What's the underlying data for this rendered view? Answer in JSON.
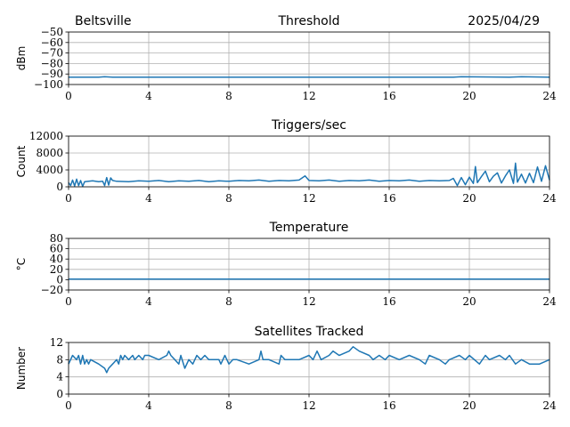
{
  "header": {
    "location": "Beltsville",
    "date": "2025/04/29"
  },
  "chart_data": [
    {
      "type": "line",
      "title": "Threshold",
      "ylabel": "dBm",
      "xlim": [
        0,
        24
      ],
      "ylim": [
        -100,
        -50
      ],
      "xticks": [
        0,
        4,
        8,
        12,
        16,
        20,
        24
      ],
      "yticks": [
        -100,
        -90,
        -80,
        -70,
        -60,
        -50
      ],
      "ytick_labels": [
        "−100",
        "−90",
        "−80",
        "−70",
        "−60",
        "−50"
      ],
      "grid": true,
      "series": [
        {
          "x": [
            0,
            1.5,
            1.8,
            2.2,
            2.6,
            5,
            10,
            15,
            19.2,
            19.6,
            22,
            22.6,
            24
          ],
          "values": [
            -93,
            -93,
            -92.5,
            -93,
            -93,
            -93,
            -93,
            -93,
            -93,
            -92.5,
            -93,
            -92.5,
            -93
          ]
        }
      ]
    },
    {
      "type": "line",
      "title": "Triggers/sec",
      "ylabel": "Count",
      "xlim": [
        0,
        24
      ],
      "ylim": [
        0,
        12000
      ],
      "xticks": [
        0,
        4,
        8,
        12,
        16,
        20,
        24
      ],
      "yticks": [
        0,
        4000,
        8000,
        12000
      ],
      "ytick_labels": [
        "0",
        "4000",
        "8000",
        "12000"
      ],
      "grid": true,
      "series": [
        {
          "x": [
            0,
            0.1,
            0.2,
            0.3,
            0.4,
            0.5,
            0.6,
            0.7,
            0.8,
            1.0,
            1.2,
            1.5,
            1.7,
            1.8,
            1.9,
            2.0,
            2.1,
            2.2,
            2.4,
            3.0,
            3.5,
            4.0,
            4.5,
            5.0,
            5.5,
            6.0,
            6.5,
            7.0,
            7.5,
            8.0,
            8.5,
            9.0,
            9.5,
            10.0,
            10.5,
            11.0,
            11.5,
            11.8,
            12.0,
            12.5,
            13.0,
            13.5,
            14.0,
            14.5,
            15.0,
            15.5,
            16.0,
            16.5,
            17.0,
            17.5,
            18.0,
            18.5,
            19.0,
            19.2,
            19.4,
            19.6,
            19.8,
            20.0,
            20.2,
            20.3,
            20.4,
            20.6,
            20.8,
            21.0,
            21.2,
            21.4,
            21.6,
            21.8,
            22.0,
            22.2,
            22.3,
            22.4,
            22.6,
            22.8,
            23.0,
            23.2,
            23.4,
            23.6,
            23.8,
            24.0
          ],
          "values": [
            1000,
            300,
            1600,
            200,
            1800,
            300,
            1500,
            100,
            1200,
            1300,
            1400,
            1200,
            1300,
            300,
            2200,
            400,
            2100,
            1500,
            1300,
            1200,
            1400,
            1300,
            1500,
            1200,
            1400,
            1300,
            1500,
            1200,
            1400,
            1300,
            1500,
            1400,
            1600,
            1300,
            1500,
            1400,
            1600,
            2600,
            1500,
            1400,
            1600,
            1300,
            1500,
            1400,
            1600,
            1300,
            1500,
            1400,
            1600,
            1300,
            1500,
            1400,
            1500,
            2000,
            300,
            2200,
            500,
            2300,
            800,
            4800,
            1000,
            2400,
            3700,
            1200,
            2500,
            3300,
            900,
            2600,
            4000,
            800,
            5600,
            1100,
            3000,
            900,
            3200,
            1000,
            4700,
            1300,
            5000,
            1600
          ]
        }
      ]
    },
    {
      "type": "line",
      "title": "Temperature",
      "ylabel": "°C",
      "xlim": [
        0,
        24
      ],
      "ylim": [
        -20,
        80
      ],
      "xticks": [
        0,
        4,
        8,
        12,
        16,
        20,
        24
      ],
      "yticks": [
        -20,
        0,
        20,
        40,
        60,
        80
      ],
      "ytick_labels": [
        "−20",
        "0",
        "20",
        "40",
        "60",
        "80"
      ],
      "grid": true,
      "series": [
        {
          "x": [
            0,
            24
          ],
          "values": [
            1,
            1
          ]
        }
      ]
    },
    {
      "type": "line",
      "title": "Satellites Tracked",
      "ylabel": "Number",
      "xlim": [
        0,
        24
      ],
      "ylim": [
        0,
        12
      ],
      "xticks": [
        0,
        4,
        8,
        12,
        16,
        20,
        24
      ],
      "yticks": [
        0,
        4,
        8,
        12
      ],
      "ytick_labels": [
        "0",
        "4",
        "8",
        "12"
      ],
      "grid": true,
      "series": [
        {
          "x": [
            0,
            0.2,
            0.4,
            0.5,
            0.6,
            0.7,
            0.8,
            0.9,
            1.0,
            1.1,
            1.5,
            1.8,
            1.9,
            2.0,
            2.2,
            2.4,
            2.5,
            2.6,
            2.7,
            2.8,
            3.0,
            3.2,
            3.3,
            3.5,
            3.7,
            3.8,
            4.0,
            4.5,
            4.9,
            5.0,
            5.1,
            5.3,
            5.5,
            5.6,
            5.8,
            6.0,
            6.2,
            6.4,
            6.6,
            6.8,
            7.0,
            7.5,
            7.6,
            7.8,
            8.0,
            8.2,
            8.4,
            9.0,
            9.5,
            9.6,
            9.7,
            10.0,
            10.5,
            10.6,
            10.8,
            11.0,
            11.5,
            12.0,
            12.2,
            12.4,
            12.5,
            12.6,
            13.0,
            13.2,
            13.5,
            14.0,
            14.2,
            14.5,
            15.0,
            15.2,
            15.5,
            15.8,
            16.0,
            16.5,
            17.0,
            17.5,
            17.8,
            18.0,
            18.5,
            18.8,
            19.0,
            19.5,
            19.8,
            20.0,
            20.5,
            20.8,
            21.0,
            21.5,
            21.8,
            22.0,
            22.3,
            22.6,
            23.0,
            23.5,
            24.0
          ],
          "values": [
            7,
            9,
            8,
            9,
            7,
            9,
            7,
            8,
            7,
            8,
            7,
            6,
            5,
            6,
            7,
            8,
            7,
            9,
            8,
            9,
            8,
            9,
            8,
            9,
            8,
            9,
            9,
            8,
            9,
            10,
            9,
            8,
            7,
            9,
            6,
            8,
            7,
            9,
            8,
            9,
            8,
            8,
            7,
            9,
            7,
            8,
            8,
            7,
            8,
            10,
            8,
            8,
            7,
            9,
            8,
            8,
            8,
            9,
            8,
            10,
            9,
            8,
            9,
            10,
            9,
            10,
            11,
            10,
            9,
            8,
            9,
            8,
            9,
            8,
            9,
            8,
            7,
            9,
            8,
            7,
            8,
            9,
            8,
            9,
            7,
            9,
            8,
            9,
            8,
            9,
            7,
            8,
            7,
            7,
            8
          ]
        }
      ]
    }
  ]
}
